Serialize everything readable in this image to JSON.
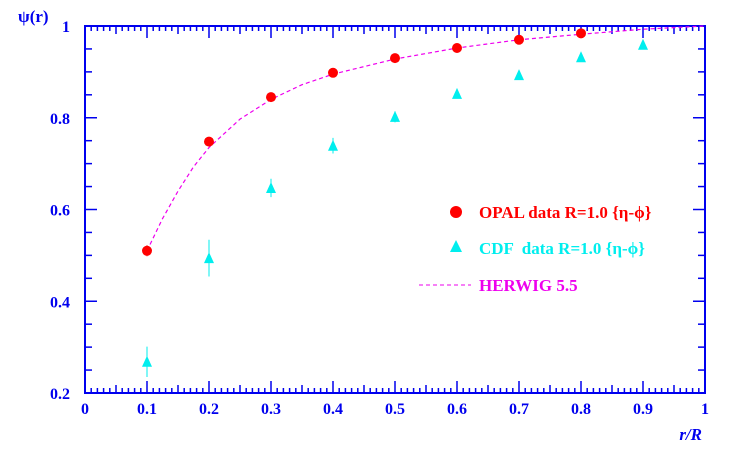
{
  "chart_data": {
    "type": "scatter",
    "title": "",
    "xlabel": "r/R",
    "ylabel": "ψ(r)",
    "xlim": [
      0,
      1
    ],
    "ylim": [
      0.2,
      1
    ],
    "xticks": [
      "0",
      "0.1",
      "0.2",
      "0.3",
      "0.4",
      "0.5",
      "0.6",
      "0.7",
      "0.8",
      "0.9",
      "1"
    ],
    "yticks": [
      "0.2",
      "0.4",
      "0.6",
      "0.8",
      "1"
    ],
    "grid": false,
    "legend_placement": "center-right",
    "series": [
      {
        "name": "OPAL data R=1.0 {η-ϕ}",
        "marker": "circle",
        "color": "#ff0000",
        "x": [
          0.1,
          0.2,
          0.3,
          0.4,
          0.5,
          0.6,
          0.7,
          0.8
        ],
        "y": [
          0.51,
          0.748,
          0.845,
          0.898,
          0.93,
          0.952,
          0.97,
          0.984
        ],
        "err": [
          0.012,
          0.01,
          0.01,
          0.01,
          0.01,
          0.01,
          0.01,
          0.01
        ]
      },
      {
        "name": "CDF  data R=1.0 {η-ϕ}",
        "marker": "triangle",
        "color": "#00eeee",
        "x": [
          0.1,
          0.2,
          0.3,
          0.4,
          0.5,
          0.6,
          0.7,
          0.8,
          0.9
        ],
        "y": [
          0.268,
          0.494,
          0.647,
          0.739,
          0.802,
          0.852,
          0.893,
          0.932,
          0.959
        ],
        "err": [
          0.033,
          0.04,
          0.02,
          0.017,
          0.012,
          0.008,
          0.006,
          0.005,
          0.005
        ]
      },
      {
        "name": "HERWIG 5.5",
        "marker": "dashed-line",
        "color": "#ee00ee",
        "x": [
          0.1,
          0.125,
          0.15,
          0.175,
          0.2,
          0.25,
          0.3,
          0.35,
          0.4,
          0.5,
          0.6,
          0.7,
          0.8,
          0.9,
          1.0
        ],
        "y": [
          0.51,
          0.58,
          0.64,
          0.693,
          0.735,
          0.797,
          0.84,
          0.872,
          0.895,
          0.928,
          0.952,
          0.97,
          0.982,
          0.993,
          1.0
        ]
      }
    ]
  }
}
